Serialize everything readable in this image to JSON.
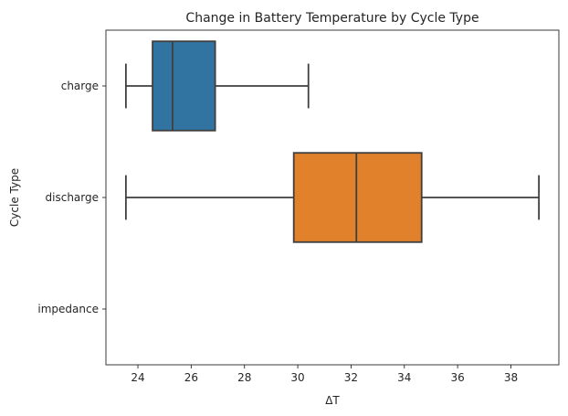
{
  "chart_data": {
    "type": "boxplot",
    "orientation": "horizontal",
    "title": "Change in Battery Temperature by Cycle Type",
    "xlabel": "ΔT",
    "ylabel": "Cycle Type",
    "xlim": [
      22.8,
      39.8
    ],
    "xticks": [
      24,
      26,
      28,
      30,
      32,
      34,
      36,
      38
    ],
    "categories": [
      "charge",
      "discharge",
      "impedance"
    ],
    "boxes": [
      {
        "category": "charge",
        "whisker_low": 23.55,
        "q1": 24.55,
        "median": 25.3,
        "q3": 26.9,
        "whisker_high": 30.4,
        "color": "#3274a1"
      },
      {
        "category": "discharge",
        "whisker_low": 23.55,
        "q1": 29.85,
        "median": 32.2,
        "q3": 34.65,
        "whisker_high": 39.05,
        "color": "#e1812c"
      },
      {
        "category": "impedance",
        "whisker_low": null,
        "q1": null,
        "median": null,
        "q3": null,
        "whisker_high": null,
        "color": "#3a923a"
      }
    ],
    "grid": false,
    "legend": "none"
  }
}
